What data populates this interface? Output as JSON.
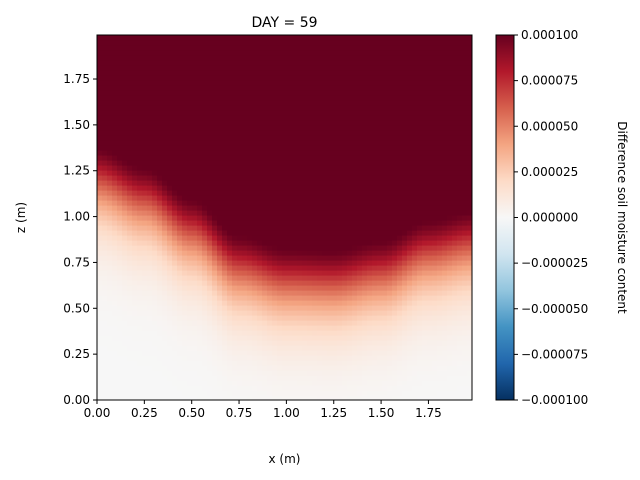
{
  "chart_data": {
    "type": "heatmap",
    "title": "DAY = 59",
    "xlabel": "x (m)",
    "ylabel": "z (m)",
    "xlim": [
      0.0,
      1.98
    ],
    "ylim": [
      0.0,
      1.99
    ],
    "xticks": [
      "0.00",
      "0.25",
      "0.50",
      "0.75",
      "1.00",
      "1.25",
      "1.50",
      "1.75"
    ],
    "xtick_values": [
      0.0,
      0.25,
      0.5,
      0.75,
      1.0,
      1.25,
      1.5,
      1.75
    ],
    "yticks": [
      "0.00",
      "0.25",
      "0.50",
      "0.75",
      "1.00",
      "1.25",
      "1.50",
      "1.75"
    ],
    "ytick_values": [
      0.0,
      0.25,
      0.5,
      0.75,
      1.0,
      1.25,
      1.5,
      1.75
    ],
    "colorbar": {
      "label": "Difference soil moisture content",
      "colormap": "RdBu_r",
      "vmin": -0.0001,
      "vmax": 0.0001,
      "ticks": [
        "0.000100",
        "0.000075",
        "0.000050",
        "0.000025",
        "0.000000",
        "−0.000025",
        "−0.000050",
        "−0.000075",
        "−0.000100"
      ],
      "tick_values": [
        0.0001,
        7.5e-05,
        5e-05,
        2.5e-05,
        0.0,
        -2.5e-05,
        -5e-05,
        -7.5e-05,
        -0.0001
      ]
    },
    "saturation_front": {
      "x": [
        0.0,
        0.25,
        0.5,
        0.75,
        1.0,
        1.25,
        1.5,
        1.75,
        1.98
      ],
      "z": [
        1.38,
        1.27,
        1.1,
        0.9,
        0.83,
        0.82,
        0.87,
        0.98,
        1.03
      ]
    },
    "colors": {
      "dark_red": "#67001f",
      "white": "#f7f7f7",
      "dark_blue": "#053061"
    },
    "grid": false
  }
}
